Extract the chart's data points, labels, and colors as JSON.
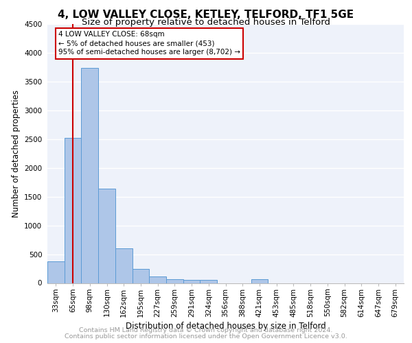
{
  "title": "4, LOW VALLEY CLOSE, KETLEY, TELFORD, TF1 5GE",
  "subtitle": "Size of property relative to detached houses in Telford",
  "xlabel": "Distribution of detached houses by size in Telford",
  "ylabel": "Number of detached properties",
  "categories": [
    "33sqm",
    "65sqm",
    "98sqm",
    "130sqm",
    "162sqm",
    "195sqm",
    "227sqm",
    "259sqm",
    "291sqm",
    "324sqm",
    "356sqm",
    "388sqm",
    "421sqm",
    "453sqm",
    "485sqm",
    "518sqm",
    "550sqm",
    "582sqm",
    "614sqm",
    "647sqm",
    "679sqm"
  ],
  "values": [
    380,
    2520,
    3740,
    1640,
    600,
    240,
    110,
    70,
    50,
    50,
    0,
    0,
    70,
    0,
    0,
    0,
    0,
    0,
    0,
    0,
    0
  ],
  "bar_color": "#aec6e8",
  "bar_edge_color": "#5b9bd5",
  "property_line_x": 1,
  "property_line_color": "#cc0000",
  "ylim": [
    0,
    4500
  ],
  "yticks": [
    0,
    500,
    1000,
    1500,
    2000,
    2500,
    3000,
    3500,
    4000,
    4500
  ],
  "annotation_text": "4 LOW VALLEY CLOSE: 68sqm\n← 5% of detached houses are smaller (453)\n95% of semi-detached houses are larger (8,702) →",
  "annotation_box_color": "#cc0000",
  "footer_line1": "Contains HM Land Registry data © Crown copyright and database right 2024.",
  "footer_line2": "Contains public sector information licensed under the Open Government Licence v3.0.",
  "background_color": "#eef2fa",
  "grid_color": "#ffffff",
  "title_fontsize": 11,
  "subtitle_fontsize": 9.5,
  "label_fontsize": 8.5,
  "tick_fontsize": 7.5,
  "footer_fontsize": 6.8
}
